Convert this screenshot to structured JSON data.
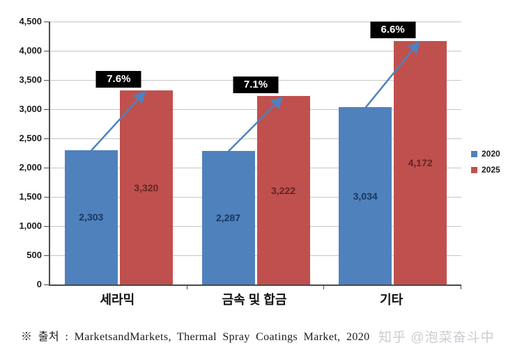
{
  "chart_data": {
    "type": "bar",
    "title": "",
    "xlabel": "",
    "ylabel": "",
    "categories": [
      "세라믹",
      "금속 및 합금",
      "기타"
    ],
    "series": [
      {
        "name": "2020",
        "values": [
          2303,
          2287,
          3034
        ],
        "value_labels": [
          "2,303",
          "2,287",
          "3,034"
        ],
        "color": "#4F81BD",
        "value_label_color": "#17375D"
      },
      {
        "name": "2025",
        "values": [
          3320,
          3222,
          4172
        ],
        "value_labels": [
          "3,320",
          "3,222",
          "4,172"
        ],
        "color": "#C0504D",
        "value_label_color": "#632423"
      }
    ],
    "growth_labels": [
      {
        "category": "세라믹",
        "text": "7.6%"
      },
      {
        "category": "금속 및 합금",
        "text": "7.1%"
      },
      {
        "category": "기타",
        "text": "6.6%"
      }
    ],
    "ylim": [
      0,
      4500
    ],
    "yticks": [
      {
        "value": 0,
        "label": "0"
      },
      {
        "value": 500,
        "label": "500"
      },
      {
        "value": 1000,
        "label": "1,000"
      },
      {
        "value": 1500,
        "label": "1,500"
      },
      {
        "value": 2000,
        "label": "2,000"
      },
      {
        "value": 2500,
        "label": "2,500"
      },
      {
        "value": 3000,
        "label": "3,000"
      },
      {
        "value": 3500,
        "label": "3,500"
      },
      {
        "value": 4000,
        "label": "4,000"
      },
      {
        "value": 4500,
        "label": "4,500"
      }
    ],
    "grid": true,
    "legend_position": "right",
    "legend": [
      {
        "label": "2020",
        "color": "#4F81BD"
      },
      {
        "label": "2025",
        "color": "#C0504D"
      }
    ],
    "arrow_color": "#4F81BD"
  },
  "footer": {
    "source_text": "※ 출처 : MarketsandMarkets, Thermal Spray Coatings Market, 2020",
    "watermark": "知乎 @泡菜奋斗中"
  },
  "colors": {
    "background": "#FFFFFF",
    "gridline": "#C6C6C6",
    "axis": "#4A4A4A",
    "growth_box_bg": "#000000",
    "growth_box_text": "#FFFFFF"
  }
}
